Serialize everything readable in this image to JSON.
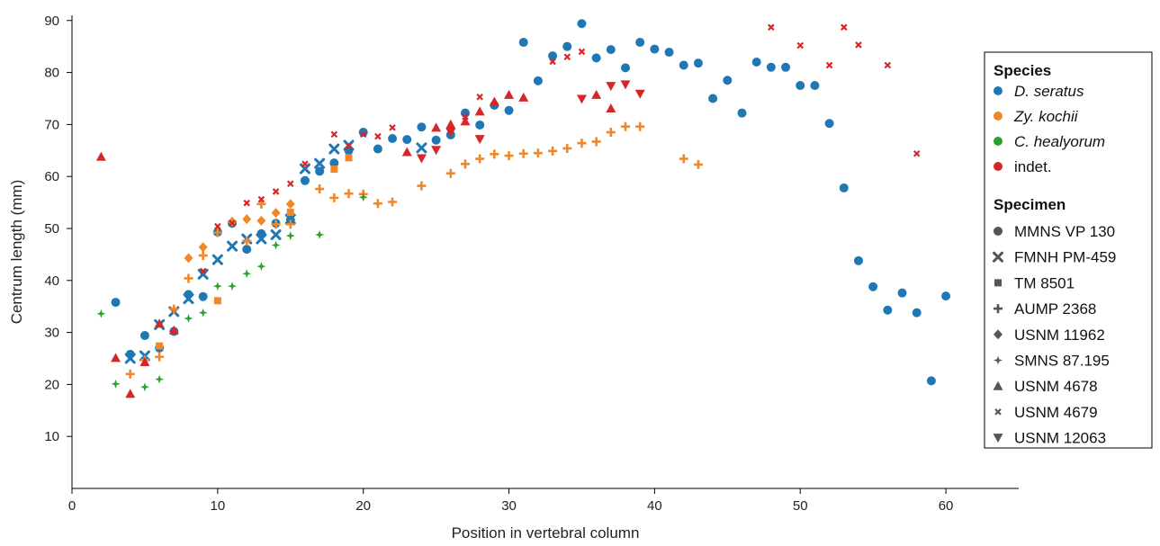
{
  "chart_data": {
    "type": "scatter",
    "xlabel": "Position in vertebral column",
    "ylabel": "Centrum length (mm)",
    "xlim": [
      0,
      65
    ],
    "ylim": [
      0,
      91
    ],
    "xticks": [
      0,
      10,
      20,
      30,
      40,
      50,
      60
    ],
    "yticks": [
      10,
      20,
      30,
      40,
      50,
      60,
      70,
      80,
      90
    ],
    "legend_position": "right",
    "legend": {
      "species_heading": "Species",
      "species": [
        {
          "key": "DS",
          "label": "D. seratus",
          "italic": true,
          "color": "#1f78b4"
        },
        {
          "key": "ZK",
          "label": "Zy. kochii",
          "italic": true,
          "color": "#f0882a"
        },
        {
          "key": "CH",
          "label": "C. healyorum",
          "italic": true,
          "color": "#2ca02c"
        },
        {
          "key": "IN",
          "label": "indet.",
          "italic": false,
          "color": "#d62728"
        }
      ],
      "specimen_heading": "Specimen",
      "specimens": [
        {
          "label": "MMNS VP 130",
          "marker": "circle"
        },
        {
          "label": "FMNH PM-459",
          "marker": "x"
        },
        {
          "label": "TM 8501",
          "marker": "square"
        },
        {
          "label": "AUMP 2368",
          "marker": "plus"
        },
        {
          "label": "USNM 11962",
          "marker": "diamond"
        },
        {
          "label": "SMNS 87.195",
          "marker": "star"
        },
        {
          "label": "USNM 4678",
          "marker": "triangle-up"
        },
        {
          "label": "USNM 4679",
          "marker": "xsmall"
        },
        {
          "label": "USNM 12063",
          "marker": "triangle-down"
        }
      ]
    },
    "series": [
      {
        "specimen": "MMNS VP 130",
        "species": "DS",
        "marker": "circle",
        "points": [
          [
            3,
            35.8
          ],
          [
            4,
            25.8
          ],
          [
            5,
            29.4
          ],
          [
            6,
            27
          ],
          [
            7,
            30.2
          ],
          [
            8,
            37.3
          ],
          [
            9,
            36.9
          ],
          [
            10,
            49.3
          ],
          [
            11,
            51
          ],
          [
            12,
            46
          ],
          [
            13,
            49
          ],
          [
            14,
            51
          ],
          [
            15,
            51.6
          ],
          [
            16,
            59.2
          ],
          [
            17,
            61
          ],
          [
            18,
            62.6
          ],
          [
            19,
            65
          ],
          [
            20,
            68.5
          ],
          [
            21,
            65.3
          ],
          [
            22,
            67.3
          ],
          [
            23,
            67.1
          ],
          [
            24,
            69.5
          ],
          [
            25,
            67
          ],
          [
            26,
            68
          ],
          [
            27,
            72.2
          ],
          [
            28,
            69.9
          ],
          [
            29,
            73.7
          ],
          [
            30,
            72.7
          ],
          [
            31,
            85.8
          ],
          [
            32,
            78.4
          ],
          [
            33,
            83.2
          ],
          [
            34,
            85
          ],
          [
            35,
            89.4
          ],
          [
            36,
            82.8
          ],
          [
            37,
            84.4
          ],
          [
            38,
            80.9
          ],
          [
            39,
            85.8
          ],
          [
            40,
            84.5
          ],
          [
            41,
            83.9
          ],
          [
            42,
            81.4
          ],
          [
            43,
            81.8
          ],
          [
            44,
            75
          ],
          [
            45,
            78.5
          ],
          [
            46,
            72.2
          ],
          [
            47,
            82
          ],
          [
            48,
            81
          ],
          [
            49,
            81
          ],
          [
            50,
            77.5
          ],
          [
            51,
            77.5
          ],
          [
            52,
            70.2
          ],
          [
            53,
            57.8
          ],
          [
            54,
            43.8
          ],
          [
            55,
            38.8
          ],
          [
            56,
            34.3
          ],
          [
            57,
            37.6
          ],
          [
            58,
            33.8
          ],
          [
            59,
            20.7
          ],
          [
            60,
            37
          ]
        ]
      },
      {
        "specimen": "FMNH PM-459",
        "species": "DS",
        "marker": "x",
        "points": [
          [
            4,
            25
          ],
          [
            5,
            25.5
          ],
          [
            6,
            31.5
          ],
          [
            7,
            34
          ],
          [
            8,
            36.5
          ],
          [
            9,
            41.2
          ],
          [
            10,
            44
          ],
          [
            11,
            46.6
          ],
          [
            12,
            48
          ],
          [
            13,
            48
          ],
          [
            14,
            48.8
          ],
          [
            15,
            51.8
          ],
          [
            16,
            61.5
          ],
          [
            17,
            62.5
          ],
          [
            18,
            65.3
          ],
          [
            19,
            66
          ],
          [
            24,
            65.5
          ]
        ]
      },
      {
        "specimen": "TM 8501",
        "species": "ZK",
        "marker": "square",
        "points": [
          [
            6,
            27.4
          ],
          [
            10,
            36.1
          ],
          [
            15,
            53.1
          ],
          [
            18,
            61.4
          ],
          [
            19,
            63.6
          ]
        ]
      },
      {
        "specimen": "AUMP 2368",
        "species": "ZK",
        "marker": "plus",
        "points": [
          [
            4,
            22
          ],
          [
            5,
            24.7
          ],
          [
            6,
            25.3
          ],
          [
            7,
            34.5
          ],
          [
            8,
            40.4
          ],
          [
            9,
            44.8
          ],
          [
            10,
            49.2
          ],
          [
            11,
            51.3
          ],
          [
            12,
            47.6
          ],
          [
            13,
            54.7
          ],
          [
            14,
            50.8
          ],
          [
            15,
            50.8
          ],
          [
            17,
            57.6
          ],
          [
            18,
            55.9
          ],
          [
            19,
            56.7
          ],
          [
            20,
            56.6
          ],
          [
            21,
            54.8
          ],
          [
            22,
            55.1
          ],
          [
            24,
            58.2
          ],
          [
            26,
            60.6
          ],
          [
            27,
            62.4
          ],
          [
            28,
            63.4
          ],
          [
            29,
            64.3
          ],
          [
            30,
            64
          ],
          [
            31,
            64.4
          ],
          [
            32,
            64.5
          ],
          [
            33,
            64.9
          ],
          [
            34,
            65.4
          ],
          [
            35,
            66.4
          ],
          [
            36,
            66.7
          ],
          [
            37,
            68.5
          ],
          [
            38,
            69.6
          ],
          [
            39,
            69.6
          ],
          [
            42,
            63.4
          ],
          [
            43,
            62.3
          ]
        ]
      },
      {
        "specimen": "USNM 11962",
        "species": "ZK",
        "marker": "diamond",
        "points": [
          [
            8,
            44.3
          ],
          [
            9,
            46.4
          ],
          [
            11,
            51.3
          ],
          [
            12,
            51.8
          ],
          [
            13,
            51.5
          ],
          [
            14,
            53
          ],
          [
            15,
            54.7
          ]
        ]
      },
      {
        "specimen": "SMNS 87.195",
        "species": "CH",
        "marker": "star",
        "points": [
          [
            2,
            33.6
          ],
          [
            3,
            20.1
          ],
          [
            5,
            19.5
          ],
          [
            6,
            21
          ],
          [
            8,
            32.7
          ],
          [
            9,
            33.8
          ],
          [
            10,
            38.9
          ],
          [
            11,
            38.9
          ],
          [
            12,
            41.3
          ],
          [
            13,
            42.7
          ],
          [
            14,
            46.8
          ],
          [
            15,
            48.6
          ],
          [
            17,
            48.8
          ],
          [
            20,
            56
          ]
        ]
      },
      {
        "specimen": "USNM 4678",
        "species": "IN",
        "marker": "triangle-up",
        "points": [
          [
            2,
            63.8
          ],
          [
            3,
            25.1
          ],
          [
            4,
            18.2
          ],
          [
            5,
            24.3
          ],
          [
            6,
            31.7
          ],
          [
            7,
            30.4
          ],
          [
            23,
            64.7
          ],
          [
            25,
            69.4
          ],
          [
            26,
            70
          ],
          [
            27,
            70.6
          ],
          [
            28,
            72.5
          ],
          [
            29,
            74.4
          ],
          [
            30,
            75.7
          ],
          [
            31,
            75.2
          ],
          [
            36,
            75.7
          ],
          [
            37,
            73.1
          ]
        ]
      },
      {
        "specimen": "USNM 4679",
        "species": "IN",
        "marker": "xsmall",
        "points": [
          [
            9,
            41.8
          ],
          [
            10,
            50.4
          ],
          [
            11,
            51
          ],
          [
            12,
            54.9
          ],
          [
            13,
            55.6
          ],
          [
            14,
            57.1
          ],
          [
            15,
            58.6
          ],
          [
            16,
            62.4
          ],
          [
            18,
            68.1
          ],
          [
            19,
            65.9
          ],
          [
            20,
            68.1
          ],
          [
            21,
            67.7
          ],
          [
            22,
            69.4
          ],
          [
            27,
            71.5
          ],
          [
            28,
            75.3
          ],
          [
            33,
            82.1
          ],
          [
            34,
            83
          ],
          [
            35,
            84
          ],
          [
            48,
            88.7
          ],
          [
            50,
            85.2
          ],
          [
            52,
            81.4
          ],
          [
            53,
            88.7
          ],
          [
            54,
            85.3
          ],
          [
            56,
            81.4
          ],
          [
            58,
            64.4
          ]
        ]
      },
      {
        "specimen": "USNM 12063",
        "species": "IN",
        "marker": "triangle-down",
        "points": [
          [
            24,
            63.5
          ],
          [
            25,
            65.1
          ],
          [
            26,
            68.5
          ],
          [
            28,
            67.2
          ],
          [
            35,
            74.9
          ],
          [
            37,
            77.4
          ],
          [
            38,
            77.7
          ],
          [
            39,
            75.9
          ]
        ]
      }
    ]
  }
}
